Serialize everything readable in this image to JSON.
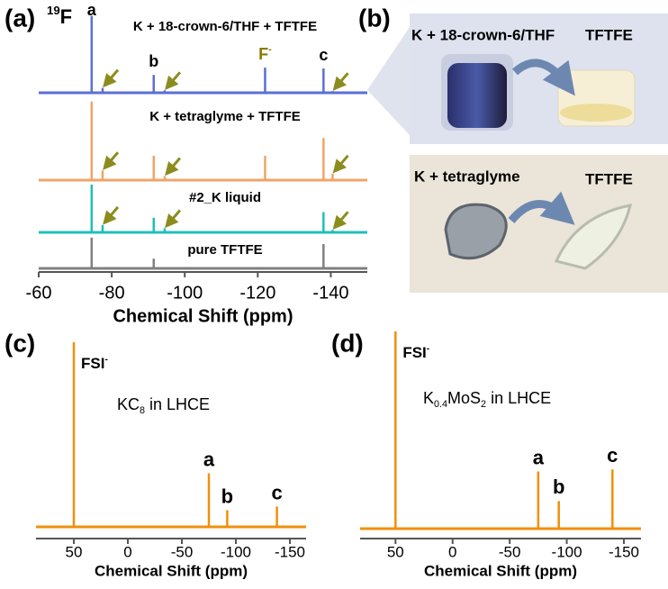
{
  "chart_data": [
    {
      "type": "stacked-spectrum",
      "panel": "(a)",
      "nucleus": [
        {
          "text": "19",
          "sup": true
        },
        {
          "text": "F"
        }
      ],
      "x_label": "Chemical Shift (ppm)",
      "xlim": [
        -60,
        -150
      ],
      "xticks": [
        -60,
        -80,
        -100,
        -120,
        -140
      ],
      "series": [
        {
          "name": "K + 18-crown-6/THF + TFTFE",
          "color": "#5b6fd6",
          "peaks": [
            {
              "x": -74.5,
              "height": 95,
              "label": "a"
            },
            {
              "x": -77.5,
              "height": 6,
              "marked": true
            },
            {
              "x": -91.5,
              "height": 22,
              "label": "b"
            },
            {
              "x": -94.5,
              "height": 3,
              "marked": true
            },
            {
              "x": -122,
              "height": 31,
              "label": [
                {
                  "text": "F"
                },
                {
                  "text": "-",
                  "sup": true
                }
              ],
              "label_color": "#8a7a00"
            },
            {
              "x": -138,
              "height": 30,
              "label": "c"
            },
            {
              "x": -140.5,
              "height": 2,
              "marked": true
            }
          ]
        },
        {
          "name": "K + tetraglyme + TFTFE",
          "color": "#f0a468",
          "peaks": [
            {
              "x": -74.5,
              "height": 97
            },
            {
              "x": -77.5,
              "height": 12,
              "marked": true
            },
            {
              "x": -91.5,
              "height": 30
            },
            {
              "x": -94.5,
              "height": 5,
              "marked": true
            },
            {
              "x": -122,
              "height": 30
            },
            {
              "x": -138,
              "height": 52
            },
            {
              "x": -140.5,
              "height": 8,
              "marked": true
            }
          ]
        },
        {
          "name": "#2_K liquid",
          "color": "#1fc0b8",
          "peaks": [
            {
              "x": -74.5,
              "height": 59
            },
            {
              "x": -77.5,
              "height": 9,
              "marked": true
            },
            {
              "x": -91.5,
              "height": 18
            },
            {
              "x": -94.5,
              "height": 5,
              "marked": true
            },
            {
              "x": -138,
              "height": 25
            },
            {
              "x": -140.5,
              "height": 3,
              "marked": true
            }
          ]
        },
        {
          "name": "pure TFTFE",
          "color": "#808080",
          "peaks": [
            {
              "x": -74.5,
              "height": 38
            },
            {
              "x": -91.5,
              "height": 12
            },
            {
              "x": -138,
              "height": 30
            }
          ]
        }
      ]
    },
    {
      "type": "spectrum",
      "panel": "(c)",
      "annotation": [
        {
          "text": "KC"
        },
        {
          "text": "8",
          "sub": true
        },
        {
          "text": " in LHCE"
        }
      ],
      "x_label": "Chemical Shift (ppm)",
      "color": "#f0900a",
      "xlim": [
        85,
        -165
      ],
      "xticks": [
        50,
        0,
        -50,
        -100,
        -150
      ],
      "peaks": [
        {
          "x": 50,
          "height": 100,
          "label": [
            {
              "text": "FSI"
            },
            {
              "text": "-",
              "sup": true
            }
          ]
        },
        {
          "x": -75,
          "height": 29,
          "label": "a"
        },
        {
          "x": -92,
          "height": 9,
          "label": "b"
        },
        {
          "x": -138,
          "height": 11,
          "label": "c"
        }
      ]
    },
    {
      "type": "spectrum",
      "panel": "(d)",
      "annotation": [
        {
          "text": "K"
        },
        {
          "text": "0.4",
          "sub": true
        },
        {
          "text": "MoS"
        },
        {
          "text": "2",
          "sub": true
        },
        {
          "text": " in LHCE"
        }
      ],
      "x_label": "Chemical Shift (ppm)",
      "color": "#f0900a",
      "xlim": [
        81,
        -165
      ],
      "xticks": [
        50,
        0,
        -50,
        -100,
        -150
      ],
      "peaks": [
        {
          "x": 50,
          "height": 100,
          "label": [
            {
              "text": "FSI"
            },
            {
              "text": "-",
              "sup": true
            }
          ]
        },
        {
          "x": -75,
          "height": 29,
          "label": "a"
        },
        {
          "x": -93,
          "height": 14,
          "label": "b"
        },
        {
          "x": -140,
          "height": 30,
          "label": "c"
        }
      ]
    }
  ],
  "panel_b": {
    "label": "(b)",
    "top": {
      "before": "K + 18-crown-6/THF",
      "after": "TFTFE"
    },
    "bottom": {
      "before": "K + tetraglyme",
      "after": "TFTFE"
    }
  }
}
